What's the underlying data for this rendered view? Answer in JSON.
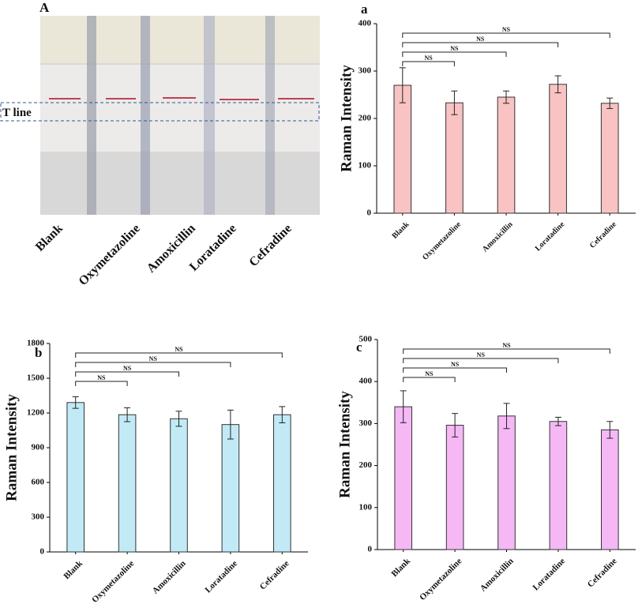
{
  "photo_panel": {
    "label": "A",
    "annotation": "T line",
    "lanes": [
      "Blank",
      "Oxymetazoline",
      "Amoxicillin",
      "Loratadine",
      "Cefradine"
    ]
  },
  "chart_data": [
    {
      "type": "bar",
      "panel": "a",
      "y_label": "Raman Intensity",
      "categories": [
        "Blank",
        "Oxymetazoline",
        "Amoxicillin",
        "Loratadine",
        "Cefradine"
      ],
      "values": [
        270,
        233,
        245,
        272,
        232
      ],
      "errors": [
        37,
        25,
        13,
        18,
        11
      ],
      "color": "#f9c3c3",
      "ylim": [
        0,
        400
      ],
      "yticks": [
        0,
        100,
        200,
        300,
        400
      ],
      "comparisons": [
        {
          "label": "NS",
          "from": "Blank",
          "to": "Oxymetazoline"
        },
        {
          "label": "NS",
          "from": "Blank",
          "to": "Amoxicillin"
        },
        {
          "label": "NS",
          "from": "Blank",
          "to": "Loratadine"
        },
        {
          "label": "NS",
          "from": "Blank",
          "to": "Cefradine"
        }
      ]
    },
    {
      "type": "bar",
      "panel": "b",
      "y_label": "Raman Intensity",
      "categories": [
        "Blank",
        "Oxymetazoline",
        "Amoxicillin",
        "Loratadine",
        "Cefradine"
      ],
      "values": [
        1290,
        1185,
        1150,
        1100,
        1185
      ],
      "errors": [
        50,
        60,
        65,
        125,
        70
      ],
      "color": "#c2eaf6",
      "ylim": [
        0,
        1800
      ],
      "yticks": [
        0,
        300,
        600,
        900,
        1200,
        1500,
        1800
      ],
      "comparisons": [
        {
          "label": "NS",
          "from": "Blank",
          "to": "Oxymetazoline"
        },
        {
          "label": "NS",
          "from": "Blank",
          "to": "Amoxicillin"
        },
        {
          "label": "NS",
          "from": "Blank",
          "to": "Loratadine"
        },
        {
          "label": "NS",
          "from": "Blank",
          "to": "Cefradine"
        }
      ]
    },
    {
      "type": "bar",
      "panel": "c",
      "y_label": "Raman Intensity",
      "categories": [
        "Blank",
        "Oxymetazoline",
        "Amoxicillin",
        "Loratadine",
        "Cefradine"
      ],
      "values": [
        340,
        296,
        318,
        305,
        285
      ],
      "errors": [
        38,
        28,
        30,
        10,
        20
      ],
      "color": "#f5b8f5",
      "ylim": [
        0,
        500
      ],
      "yticks": [
        0,
        100,
        200,
        300,
        400,
        500
      ],
      "comparisons": [
        {
          "label": "NS",
          "from": "Blank",
          "to": "Oxymetazoline"
        },
        {
          "label": "NS",
          "from": "Blank",
          "to": "Amoxicillin"
        },
        {
          "label": "NS",
          "from": "Blank",
          "to": "Loratadine"
        },
        {
          "label": "NS",
          "from": "Blank",
          "to": "Cefradine"
        }
      ]
    }
  ]
}
